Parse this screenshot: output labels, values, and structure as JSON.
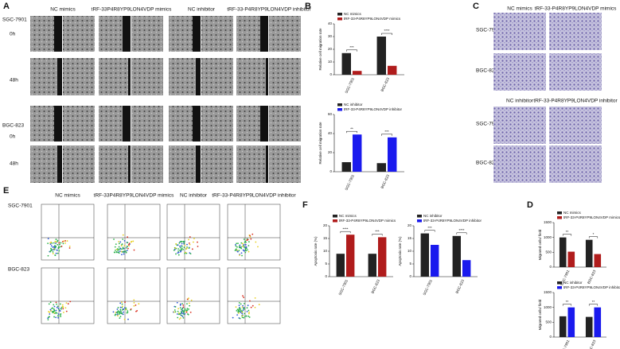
{
  "panels": {
    "A": {
      "label": "A",
      "columns": [
        "NC mimics",
        "tRF-33P4R8YP9LON4VDP mimics",
        "NC inhibitor",
        "tRF-33-P4R8YP9LON4VDP inhibitor"
      ],
      "rows": [
        "SGC-7901",
        "0h",
        "48h",
        "BGC-823",
        "0h",
        "48h"
      ]
    },
    "B": {
      "label": "B"
    },
    "C": {
      "label": "C",
      "columns": [
        "NC mimics",
        "tRF-33-P4R8YP9LON4VDP mimics"
      ],
      "columns2": [
        "NC inhibitor",
        "tRF-33-P4R8YP9LON4VDP inhibitor"
      ],
      "rows": [
        "SGC-7901",
        "BGC-823",
        "SGC-7901",
        "BGC-823"
      ]
    },
    "D": {
      "label": "D"
    },
    "E": {
      "label": "E",
      "columns": [
        "NC mimics",
        "tRF-33P4R8YP9LON4VDP mimics",
        "NC inhibitor",
        "tRF-33-P4R8YP9LON4VDP inhibitor"
      ],
      "rows": [
        "SGC-7901",
        "BGC-823"
      ]
    },
    "F": {
      "label": "F"
    }
  },
  "chart_data": [
    {
      "type": "bar",
      "ylabel": "Relative cell migration rate",
      "categories": [
        "SGC-7901",
        "BGC-823"
      ],
      "series": [
        {
          "name": "NC mimics",
          "color": "#222222",
          "values": [
            17,
            30
          ]
        },
        {
          "name": "tRF-33-P4R8YP9LON4VDP mimics",
          "color": "#b01c1c",
          "values": [
            3,
            7
          ]
        }
      ],
      "ylim": [
        0,
        40
      ],
      "yticks": [
        0,
        10,
        20,
        30,
        40
      ],
      "annotations": [
        "***",
        "****"
      ],
      "legend": "top-left"
    },
    {
      "type": "bar",
      "ylabel": "Relative cell migration rate",
      "categories": [
        "SGC-7901",
        "BGC-823"
      ],
      "series": [
        {
          "name": "NC inhibitor",
          "color": "#222222",
          "values": [
            10,
            9
          ]
        },
        {
          "name": "tRF-33-P4R8YP9LON4VDP inhibitor",
          "color": "#1a1aee",
          "values": [
            39,
            36
          ]
        }
      ],
      "ylim": [
        0,
        60
      ],
      "yticks": [
        0,
        20,
        40,
        60
      ],
      "annotations": [
        "**",
        "***"
      ],
      "legend": "top-left"
    },
    {
      "type": "bar",
      "ylabel": "Migrated cells/ field",
      "categories": [
        "SGC-7901",
        "BGC-823"
      ],
      "series": [
        {
          "name": "NC mimics",
          "color": "#222222",
          "values": [
            1000,
            920
          ]
        },
        {
          "name": "tRF-33-P4R8YP9LON4VDP mimics",
          "color": "#b01c1c",
          "values": [
            520,
            440
          ]
        }
      ],
      "ylim": [
        0,
        1500
      ],
      "yticks": [
        0,
        500,
        1000,
        1500
      ],
      "annotations": [
        "**",
        "*"
      ],
      "legend": "top-left"
    },
    {
      "type": "bar",
      "ylabel": "Migrated cells/ field",
      "categories": [
        "SGC-7901",
        "BGC-823"
      ],
      "series": [
        {
          "name": "NC inhibitor",
          "color": "#222222",
          "values": [
            700,
            680
          ]
        },
        {
          "name": "tRF-33-P4R8YP9LON4VDP inhibitor",
          "color": "#1a1aee",
          "values": [
            1000,
            1000
          ]
        }
      ],
      "ylim": [
        0,
        1500
      ],
      "yticks": [
        0,
        500,
        1000,
        1500
      ],
      "annotations": [
        "**",
        "**"
      ],
      "legend": "top-left"
    },
    {
      "type": "bar",
      "ylabel": "Apoptosis rate (%)",
      "categories": [
        "SGC-7901",
        "BGC-823"
      ],
      "series": [
        {
          "name": "NC mimics",
          "color": "#222222",
          "values": [
            9,
            9
          ]
        },
        {
          "name": "tRF-33-P4R8YP9LON4VDP mimics",
          "color": "#b01c1c",
          "values": [
            16.5,
            15.5
          ]
        }
      ],
      "ylim": [
        0,
        20
      ],
      "yticks": [
        0,
        5,
        10,
        15,
        20
      ],
      "annotations": [
        "****",
        "***"
      ],
      "legend": "top-left"
    },
    {
      "type": "bar",
      "ylabel": "Apoptosis rate (%)",
      "categories": [
        "SGC-7901",
        "BGC-823"
      ],
      "series": [
        {
          "name": "NC inhibitor",
          "color": "#222222",
          "values": [
            17,
            16
          ]
        },
        {
          "name": "tRF-33-P4R8YP9LON4VDP inhibitor",
          "color": "#1a1aee",
          "values": [
            12.5,
            6.5
          ]
        }
      ],
      "ylim": [
        0,
        20
      ],
      "yticks": [
        0,
        5,
        10,
        15,
        20
      ],
      "annotations": [
        "***",
        "****"
      ],
      "legend": "top-left"
    }
  ]
}
